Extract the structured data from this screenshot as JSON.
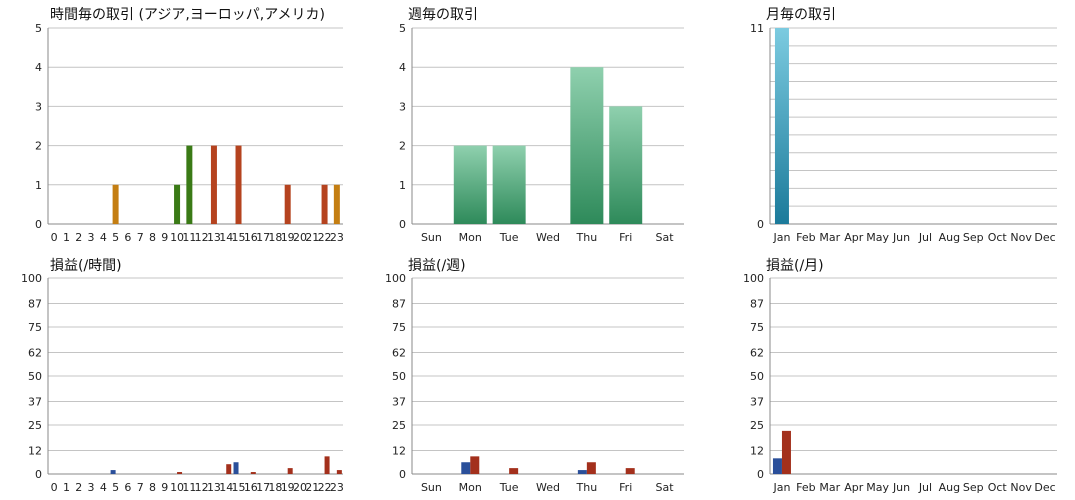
{
  "colors": {
    "grid": "#c4c4c4",
    "axis": "#8a8a8a",
    "hour_bars": [
      "#3a7a16",
      "#b5431f",
      "#c47e12"
    ],
    "week_bar": "#2e8a5a",
    "month_bar": "#1b7a9a",
    "pnl_blue": "#2a4f9a",
    "pnl_red": "#a3301c"
  },
  "chart_data": [
    {
      "type": "bar",
      "title": "時間毎の取引 (アジア,ヨーロッパ,アメリカ)",
      "categories": [
        "0",
        "1",
        "2",
        "3",
        "4",
        "5",
        "6",
        "7",
        "8",
        "9",
        "10",
        "11",
        "12",
        "13",
        "14",
        "15",
        "16",
        "17",
        "18",
        "19",
        "20",
        "21",
        "22",
        "23"
      ],
      "values": [
        0,
        0,
        0,
        0,
        0,
        1,
        0,
        0,
        0,
        0,
        1,
        2,
        0,
        2,
        0,
        2,
        0,
        0,
        0,
        1,
        0,
        0,
        1,
        1
      ],
      "bar_colors": [
        "",
        "",
        "",
        "",
        "",
        "#c47e12",
        "",
        "",
        "",
        "",
        "#3a7a16",
        "#3a7a16",
        "",
        "#b5431f",
        "",
        "#b5431f",
        "",
        "",
        "",
        "#b5431f",
        "",
        "",
        "#b5431f",
        "#c47e12"
      ],
      "yticks": [
        "0",
        "1",
        "2",
        "3",
        "4",
        "5"
      ],
      "ylim": [
        0,
        5
      ],
      "grid": true
    },
    {
      "type": "bar",
      "title": "週毎の取引",
      "categories": [
        "Sun",
        "Mon",
        "Tue",
        "Wed",
        "Thu",
        "Fri",
        "Sat"
      ],
      "values": [
        0,
        2,
        2,
        0,
        4,
        3,
        0
      ],
      "yticks": [
        "0",
        "1",
        "2",
        "3",
        "4",
        "5"
      ],
      "ylim": [
        0,
        5
      ],
      "grid": true
    },
    {
      "type": "bar",
      "title": "月毎の取引",
      "categories": [
        "Jan",
        "Feb",
        "Mar",
        "Apr",
        "May",
        "Jun",
        "Jul",
        "Aug",
        "Sep",
        "Oct",
        "Nov",
        "Dec"
      ],
      "values": [
        11,
        0,
        0,
        0,
        0,
        0,
        0,
        0,
        0,
        0,
        0,
        0
      ],
      "yticks": [
        "0",
        "11"
      ],
      "ylim": [
        0,
        11
      ],
      "grid": true
    },
    {
      "type": "bar",
      "title": "損益(/時間)",
      "categories": [
        "0",
        "1",
        "2",
        "3",
        "4",
        "5",
        "6",
        "7",
        "8",
        "9",
        "10",
        "11",
        "12",
        "13",
        "14",
        "15",
        "16",
        "17",
        "18",
        "19",
        "20",
        "21",
        "22",
        "23"
      ],
      "series": [
        {
          "values": [
            0,
            0,
            0,
            0,
            0,
            2,
            0,
            0,
            0,
            0,
            0,
            0,
            0,
            0,
            0,
            6,
            0,
            0,
            0,
            0,
            0,
            0,
            0,
            0
          ]
        },
        {
          "values": [
            0,
            0,
            0,
            0,
            0,
            0,
            0,
            0,
            0,
            0,
            1,
            0,
            0,
            0,
            5,
            0,
            1,
            0,
            0,
            3,
            0,
            0,
            9,
            2
          ]
        }
      ],
      "yticks": [
        "0",
        "12",
        "25",
        "37",
        "50",
        "62",
        "75",
        "87",
        "100"
      ],
      "ylim": [
        0,
        100
      ],
      "grid": true
    },
    {
      "type": "bar",
      "title": "損益(/週)",
      "categories": [
        "Sun",
        "Mon",
        "Tue",
        "Wed",
        "Thu",
        "Fri",
        "Sat"
      ],
      "series": [
        {
          "values": [
            0,
            6,
            0,
            0,
            2,
            0,
            0
          ]
        },
        {
          "values": [
            0,
            9,
            3,
            0,
            6,
            3,
            0
          ]
        }
      ],
      "yticks": [
        "0",
        "12",
        "25",
        "37",
        "50",
        "62",
        "75",
        "87",
        "100"
      ],
      "ylim": [
        0,
        100
      ],
      "grid": true
    },
    {
      "type": "bar",
      "title": "損益(/月)",
      "categories": [
        "Jan",
        "Feb",
        "Mar",
        "Apr",
        "May",
        "Jun",
        "Jul",
        "Aug",
        "Sep",
        "Oct",
        "Nov",
        "Dec"
      ],
      "series": [
        {
          "values": [
            8,
            0,
            0,
            0,
            0,
            0,
            0,
            0,
            0,
            0,
            0,
            0
          ]
        },
        {
          "values": [
            22,
            0,
            0,
            0,
            0,
            0,
            0,
            0,
            0,
            0,
            0,
            0
          ]
        }
      ],
      "yticks": [
        "0",
        "12",
        "25",
        "37",
        "50",
        "62",
        "75",
        "87",
        "100"
      ],
      "ylim": [
        0,
        100
      ],
      "grid": true
    }
  ]
}
